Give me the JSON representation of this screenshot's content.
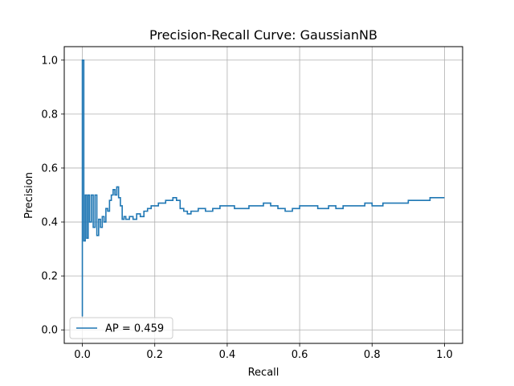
{
  "chart_data": {
    "type": "line",
    "title": "Precision-Recall Curve: GaussianNB",
    "xlabel": "Recall",
    "ylabel": "Precision",
    "xlim": [
      -0.05,
      1.05
    ],
    "ylim": [
      -0.05,
      1.05
    ],
    "xticks": [
      0.0,
      0.2,
      0.4,
      0.6,
      0.8,
      1.0
    ],
    "xtick_labels": [
      "0.0",
      "0.2",
      "0.4",
      "0.6",
      "0.8",
      "1.0"
    ],
    "yticks": [
      0.0,
      0.2,
      0.4,
      0.6,
      0.8,
      1.0
    ],
    "ytick_labels": [
      "0.0",
      "0.2",
      "0.4",
      "0.6",
      "0.8",
      "1.0"
    ],
    "grid": true,
    "legend": "lower-left",
    "series": [
      {
        "name": "AP = 0.459",
        "color": "#1f77b4",
        "step": true,
        "x": [
          0.0,
          0.0,
          0.004,
          0.004,
          0.008,
          0.008,
          0.012,
          0.012,
          0.016,
          0.016,
          0.02,
          0.02,
          0.025,
          0.025,
          0.03,
          0.03,
          0.035,
          0.035,
          0.04,
          0.04,
          0.045,
          0.045,
          0.05,
          0.05,
          0.055,
          0.055,
          0.06,
          0.06,
          0.065,
          0.065,
          0.07,
          0.07,
          0.075,
          0.075,
          0.08,
          0.08,
          0.085,
          0.085,
          0.09,
          0.09,
          0.095,
          0.095,
          0.1,
          0.1,
          0.105,
          0.105,
          0.11,
          0.11,
          0.115,
          0.115,
          0.12,
          0.12,
          0.13,
          0.13,
          0.14,
          0.14,
          0.15,
          0.15,
          0.16,
          0.16,
          0.17,
          0.17,
          0.18,
          0.18,
          0.19,
          0.19,
          0.2,
          0.2,
          0.21,
          0.21,
          0.22,
          0.22,
          0.23,
          0.23,
          0.24,
          0.24,
          0.25,
          0.25,
          0.26,
          0.26,
          0.27,
          0.27,
          0.28,
          0.28,
          0.29,
          0.29,
          0.3,
          0.3,
          0.32,
          0.32,
          0.34,
          0.34,
          0.36,
          0.36,
          0.38,
          0.38,
          0.4,
          0.4,
          0.42,
          0.42,
          0.44,
          0.44,
          0.46,
          0.46,
          0.48,
          0.48,
          0.5,
          0.5,
          0.52,
          0.52,
          0.54,
          0.54,
          0.56,
          0.56,
          0.58,
          0.58,
          0.6,
          0.6,
          0.62,
          0.62,
          0.65,
          0.65,
          0.68,
          0.68,
          0.7,
          0.7,
          0.72,
          0.72,
          0.75,
          0.75,
          0.78,
          0.78,
          0.8,
          0.8,
          0.83,
          0.83,
          0.86,
          0.86,
          0.9,
          0.9,
          0.93,
          0.93,
          0.96,
          0.96,
          1.0
        ],
        "y": [
          0.05,
          1.0,
          1.0,
          0.33,
          0.33,
          0.5,
          0.5,
          0.34,
          0.34,
          0.5,
          0.5,
          0.4,
          0.4,
          0.5,
          0.5,
          0.38,
          0.38,
          0.5,
          0.5,
          0.35,
          0.35,
          0.41,
          0.41,
          0.38,
          0.38,
          0.42,
          0.42,
          0.4,
          0.4,
          0.45,
          0.45,
          0.44,
          0.44,
          0.48,
          0.48,
          0.5,
          0.5,
          0.52,
          0.52,
          0.5,
          0.5,
          0.53,
          0.53,
          0.49,
          0.49,
          0.46,
          0.46,
          0.41,
          0.41,
          0.42,
          0.42,
          0.41,
          0.41,
          0.42,
          0.42,
          0.41,
          0.41,
          0.43,
          0.43,
          0.42,
          0.42,
          0.44,
          0.44,
          0.45,
          0.45,
          0.46,
          0.46,
          0.46,
          0.46,
          0.47,
          0.47,
          0.47,
          0.47,
          0.48,
          0.48,
          0.48,
          0.48,
          0.49,
          0.49,
          0.48,
          0.48,
          0.45,
          0.45,
          0.44,
          0.44,
          0.43,
          0.43,
          0.44,
          0.44,
          0.45,
          0.45,
          0.44,
          0.44,
          0.45,
          0.45,
          0.46,
          0.46,
          0.46,
          0.46,
          0.45,
          0.45,
          0.45,
          0.45,
          0.46,
          0.46,
          0.46,
          0.46,
          0.47,
          0.47,
          0.46,
          0.46,
          0.45,
          0.45,
          0.44,
          0.44,
          0.45,
          0.45,
          0.46,
          0.46,
          0.46,
          0.46,
          0.45,
          0.45,
          0.46,
          0.46,
          0.45,
          0.45,
          0.46,
          0.46,
          0.46,
          0.46,
          0.47,
          0.47,
          0.46,
          0.46,
          0.47,
          0.47,
          0.47,
          0.47,
          0.48,
          0.48,
          0.48,
          0.48,
          0.49,
          0.49
        ]
      }
    ]
  }
}
